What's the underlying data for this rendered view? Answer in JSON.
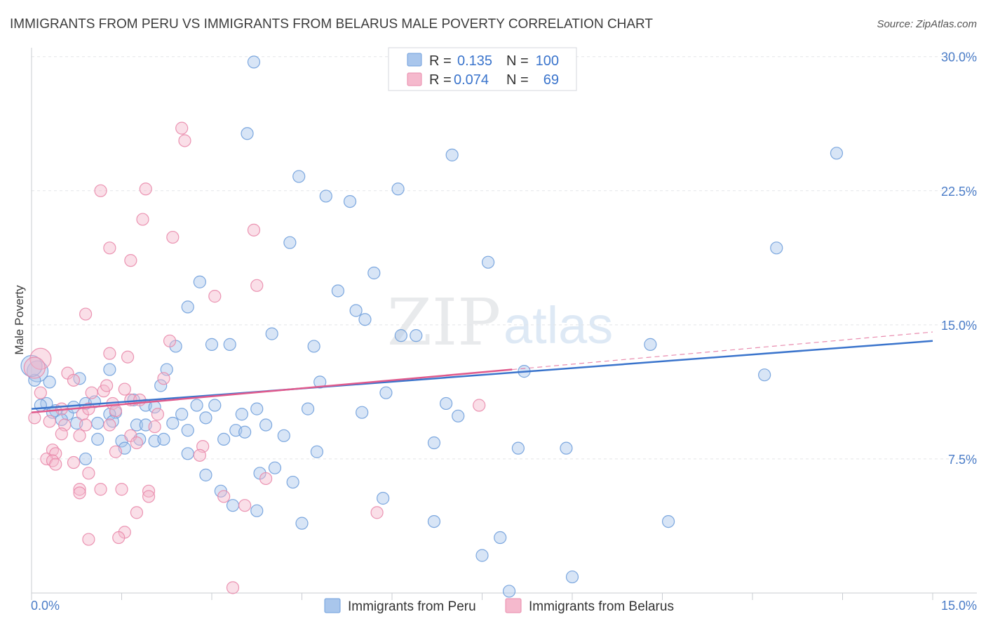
{
  "chart_data": {
    "type": "scatter",
    "title": "IMMIGRANTS FROM PERU VS IMMIGRANTS FROM BELARUS MALE POVERTY CORRELATION CHART",
    "source": "Source: ZipAtlas.com",
    "xlabel": "",
    "ylabel": "Male Poverty",
    "xlim": [
      0,
      15
    ],
    "ylim": [
      0,
      30.5
    ],
    "x_ticks": [
      "0.0%",
      "15.0%"
    ],
    "y_ticks": [
      {
        "value": 7.5,
        "label": "7.5%"
      },
      {
        "value": 15.0,
        "label": "15.0%"
      },
      {
        "value": 22.5,
        "label": "22.5%"
      },
      {
        "value": 30.0,
        "label": "30.0%"
      }
    ],
    "grid": true,
    "watermark": {
      "zip": "ZIP",
      "atlas": "atlas"
    },
    "legend_top": {
      "r_label": "R =",
      "n_label": "N =",
      "rows": [
        {
          "series": "Immigrants from Peru",
          "r": "0.135",
          "n": "100"
        },
        {
          "series": "Immigrants from Belarus",
          "r": "0.074",
          "n": "69"
        }
      ]
    },
    "series": [
      {
        "name": "Immigrants from Peru",
        "color": "#a9c6ec",
        "stroke": "#6f9fdc",
        "line_color": "#3a74cc",
        "trend": {
          "x0": 0.0,
          "y0": 10.3,
          "x1": 15.0,
          "y1": 14.1
        },
        "points": [
          [
            3.7,
            29.7
          ],
          [
            3.59,
            25.7
          ],
          [
            7.0,
            24.5
          ],
          [
            13.4,
            24.6
          ],
          [
            4.45,
            23.3
          ],
          [
            4.9,
            22.2
          ],
          [
            5.3,
            21.9
          ],
          [
            6.1,
            22.6
          ],
          [
            4.3,
            19.6
          ],
          [
            12.4,
            19.3
          ],
          [
            5.7,
            17.9
          ],
          [
            7.6,
            18.5
          ],
          [
            2.8,
            17.4
          ],
          [
            5.1,
            16.9
          ],
          [
            2.6,
            16.0
          ],
          [
            5.4,
            15.8
          ],
          [
            5.55,
            15.3
          ],
          [
            4.0,
            14.5
          ],
          [
            6.15,
            14.4
          ],
          [
            6.4,
            14.4
          ],
          [
            3.0,
            13.9
          ],
          [
            3.3,
            13.9
          ],
          [
            2.4,
            13.8
          ],
          [
            4.7,
            13.8
          ],
          [
            10.3,
            13.9
          ],
          [
            8.2,
            12.4
          ],
          [
            12.2,
            12.2
          ],
          [
            1.3,
            12.5
          ],
          [
            2.25,
            12.5
          ],
          [
            4.8,
            11.8
          ],
          [
            0.8,
            12.0
          ],
          [
            0.3,
            11.8
          ],
          [
            2.15,
            11.6
          ],
          [
            5.9,
            11.2
          ],
          [
            0.1,
            12.4
          ],
          [
            0.05,
            11.9
          ],
          [
            0.25,
            10.6
          ],
          [
            0.4,
            10.2
          ],
          [
            0.6,
            10.0
          ],
          [
            0.7,
            10.4
          ],
          [
            0.9,
            10.6
          ],
          [
            1.05,
            10.7
          ],
          [
            1.4,
            10.1
          ],
          [
            1.7,
            10.8
          ],
          [
            1.9,
            10.5
          ],
          [
            2.05,
            10.4
          ],
          [
            2.75,
            10.5
          ],
          [
            3.05,
            10.5
          ],
          [
            3.75,
            10.3
          ],
          [
            4.6,
            10.3
          ],
          [
            6.9,
            10.6
          ],
          [
            7.1,
            9.9
          ],
          [
            5.5,
            10.1
          ],
          [
            3.5,
            10.0
          ],
          [
            2.5,
            10.0
          ],
          [
            2.9,
            9.8
          ],
          [
            1.3,
            10.0
          ],
          [
            0.5,
            9.7
          ],
          [
            0.75,
            9.5
          ],
          [
            1.1,
            9.5
          ],
          [
            1.35,
            9.6
          ],
          [
            1.75,
            9.4
          ],
          [
            1.9,
            9.4
          ],
          [
            2.35,
            9.5
          ],
          [
            2.6,
            9.1
          ],
          [
            3.4,
            9.1
          ],
          [
            3.55,
            9.0
          ],
          [
            3.9,
            9.4
          ],
          [
            4.2,
            8.8
          ],
          [
            1.1,
            8.6
          ],
          [
            1.5,
            8.5
          ],
          [
            1.8,
            8.6
          ],
          [
            2.05,
            8.5
          ],
          [
            2.2,
            8.6
          ],
          [
            3.2,
            8.6
          ],
          [
            1.55,
            8.1
          ],
          [
            2.6,
            7.8
          ],
          [
            4.75,
            7.9
          ],
          [
            6.7,
            8.4
          ],
          [
            8.1,
            8.1
          ],
          [
            8.9,
            8.1
          ],
          [
            0.9,
            7.5
          ],
          [
            3.8,
            6.7
          ],
          [
            4.05,
            7.0
          ],
          [
            4.35,
            6.2
          ],
          [
            2.9,
            6.6
          ],
          [
            3.15,
            5.7
          ],
          [
            3.35,
            4.9
          ],
          [
            3.75,
            4.6
          ],
          [
            5.85,
            5.3
          ],
          [
            4.5,
            3.9
          ],
          [
            6.7,
            4.0
          ],
          [
            10.6,
            4.0
          ],
          [
            7.8,
            3.1
          ],
          [
            7.5,
            2.1
          ],
          [
            9.0,
            0.9
          ],
          [
            7.95,
            0.1
          ],
          [
            0.35,
            10.1
          ],
          [
            0.15,
            10.5
          ],
          [
            0.0,
            12.7
          ]
        ]
      },
      {
        "name": "Immigrants from Belarus",
        "color": "#f5b9cd",
        "stroke": "#e98aab",
        "line_color": "#e05a8c",
        "trend": {
          "x0": 0.0,
          "y0": 10.1,
          "x1": 8.0,
          "y1": 12.5
        },
        "trend_dashed": {
          "x0": 8.0,
          "y0": 12.5,
          "x1": 15.0,
          "y1": 14.6
        },
        "points": [
          [
            2.5,
            26.0
          ],
          [
            2.55,
            25.3
          ],
          [
            1.15,
            22.5
          ],
          [
            1.9,
            22.6
          ],
          [
            1.85,
            20.9
          ],
          [
            3.7,
            20.3
          ],
          [
            2.35,
            19.9
          ],
          [
            1.3,
            19.3
          ],
          [
            1.65,
            18.6
          ],
          [
            3.75,
            17.2
          ],
          [
            3.05,
            16.6
          ],
          [
            0.9,
            15.6
          ],
          [
            2.3,
            14.1
          ],
          [
            1.3,
            13.4
          ],
          [
            1.6,
            13.2
          ],
          [
            0.15,
            13.1
          ],
          [
            0.6,
            12.3
          ],
          [
            0.7,
            11.9
          ],
          [
            2.2,
            12.0
          ],
          [
            1.55,
            11.4
          ],
          [
            1.2,
            11.3
          ],
          [
            1.0,
            11.2
          ],
          [
            0.15,
            11.2
          ],
          [
            1.65,
            10.8
          ],
          [
            1.35,
            10.6
          ],
          [
            1.4,
            10.2
          ],
          [
            2.1,
            10.0
          ],
          [
            0.5,
            10.3
          ],
          [
            0.85,
            10.0
          ],
          [
            0.05,
            9.8
          ],
          [
            0.3,
            9.6
          ],
          [
            0.55,
            9.4
          ],
          [
            0.9,
            9.4
          ],
          [
            1.3,
            9.4
          ],
          [
            2.05,
            9.3
          ],
          [
            0.5,
            8.9
          ],
          [
            0.8,
            8.8
          ],
          [
            1.65,
            8.8
          ],
          [
            1.75,
            8.4
          ],
          [
            2.85,
            8.2
          ],
          [
            0.35,
            8.0
          ],
          [
            0.4,
            7.8
          ],
          [
            1.4,
            7.9
          ],
          [
            0.25,
            7.5
          ],
          [
            0.35,
            7.4
          ],
          [
            0.4,
            7.2
          ],
          [
            0.7,
            7.3
          ],
          [
            2.8,
            7.7
          ],
          [
            0.95,
            6.7
          ],
          [
            3.9,
            6.4
          ],
          [
            0.8,
            5.8
          ],
          [
            0.8,
            5.6
          ],
          [
            1.15,
            5.8
          ],
          [
            1.5,
            5.8
          ],
          [
            1.95,
            5.7
          ],
          [
            1.95,
            5.4
          ],
          [
            3.2,
            5.4
          ],
          [
            3.55,
            4.9
          ],
          [
            1.75,
            4.5
          ],
          [
            5.75,
            4.5
          ],
          [
            1.55,
            3.4
          ],
          [
            1.45,
            3.1
          ],
          [
            0.95,
            3.0
          ],
          [
            3.35,
            0.3
          ],
          [
            7.45,
            10.5
          ],
          [
            0.05,
            12.6
          ],
          [
            1.8,
            10.8
          ],
          [
            1.25,
            11.6
          ],
          [
            0.95,
            10.3
          ]
        ]
      }
    ],
    "bottom_legend": [
      "Immigrants from Peru",
      "Immigrants from Belarus"
    ]
  }
}
